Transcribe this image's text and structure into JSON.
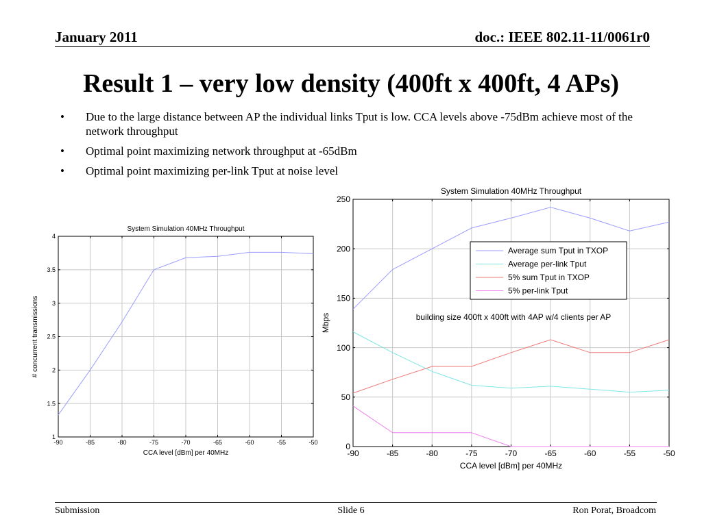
{
  "header": {
    "date": "January 2011",
    "doc": "doc.: IEEE 802.11-11/0061r0"
  },
  "title": "Result 1 – very low density (400ft x 400ft, 4 APs)",
  "bullet_glyph": "•",
  "bullets": [
    "Due to the large distance between AP the individual links Tput is low. CCA levels above -75dBm achieve most of the network throughput",
    "Optimal point maximizing network throughput at -65dBm",
    "Optimal point maximizing per-link Tput at noise level"
  ],
  "footer": {
    "left": "Submission",
    "center": "Slide 6",
    "right": "Ron Porat, Broadcom"
  },
  "chart_data": [
    {
      "type": "line",
      "title": "System Simulation 40MHz Throughput",
      "xlabel": "CCA level [dBm] per 40MHz",
      "ylabel": "# concurrent transmissions",
      "x": [
        -90,
        -85,
        -80,
        -75,
        -70,
        -65,
        -60,
        -55,
        -50
      ],
      "xlim": [
        -90,
        -50
      ],
      "ylim": [
        1,
        4
      ],
      "xticks": [
        "-90",
        "-85",
        "-80",
        "-75",
        "-70",
        "-65",
        "-60",
        "-55",
        "-50"
      ],
      "yticks": [
        "1",
        "1.5",
        "2",
        "2.5",
        "3",
        "3.5",
        "4"
      ],
      "grid": true,
      "series": [
        {
          "color": "#9c9cff",
          "values": [
            1.33,
            2.0,
            2.72,
            3.5,
            3.68,
            3.7,
            3.76,
            3.76,
            3.74
          ]
        }
      ]
    },
    {
      "type": "line",
      "title": "System Simulation 40MHz Throughput",
      "xlabel": "CCA level [dBm] per 40MHz",
      "ylabel": "Mbps",
      "x": [
        -90,
        -85,
        -80,
        -75,
        -70,
        -65,
        -60,
        -55,
        -50
      ],
      "xlim": [
        -90,
        -50
      ],
      "ylim": [
        0,
        250
      ],
      "xticks": [
        "-90",
        "-85",
        "-80",
        "-75",
        "-70",
        "-65",
        "-60",
        "-55",
        "-50"
      ],
      "yticks": [
        "0",
        "50",
        "100",
        "150",
        "200",
        "250"
      ],
      "grid": true,
      "legend": "upper-right inside plot",
      "annotation": "building size 400ft x 400ft with 4AP w/4 clients per AP",
      "series": [
        {
          "name": "Average sum Tput in TXOP",
          "color": "#9c9cff",
          "values": [
            139,
            179,
            200,
            221,
            231,
            242,
            231,
            218,
            227
          ]
        },
        {
          "name": "Average per-link Tput",
          "color": "#7fe6e6",
          "values": [
            116,
            95,
            76,
            62,
            59,
            61,
            58,
            55,
            57
          ]
        },
        {
          "name": "5% sum Tput in TXOP",
          "color": "#ee7a7a",
          "values": [
            54,
            68,
            81,
            81,
            95,
            108,
            95,
            95,
            108
          ]
        },
        {
          "name": "5% per-link Tput",
          "color": "#ee80ee",
          "values": [
            41,
            14,
            14,
            14,
            0,
            0,
            0,
            0,
            0
          ]
        }
      ]
    }
  ]
}
